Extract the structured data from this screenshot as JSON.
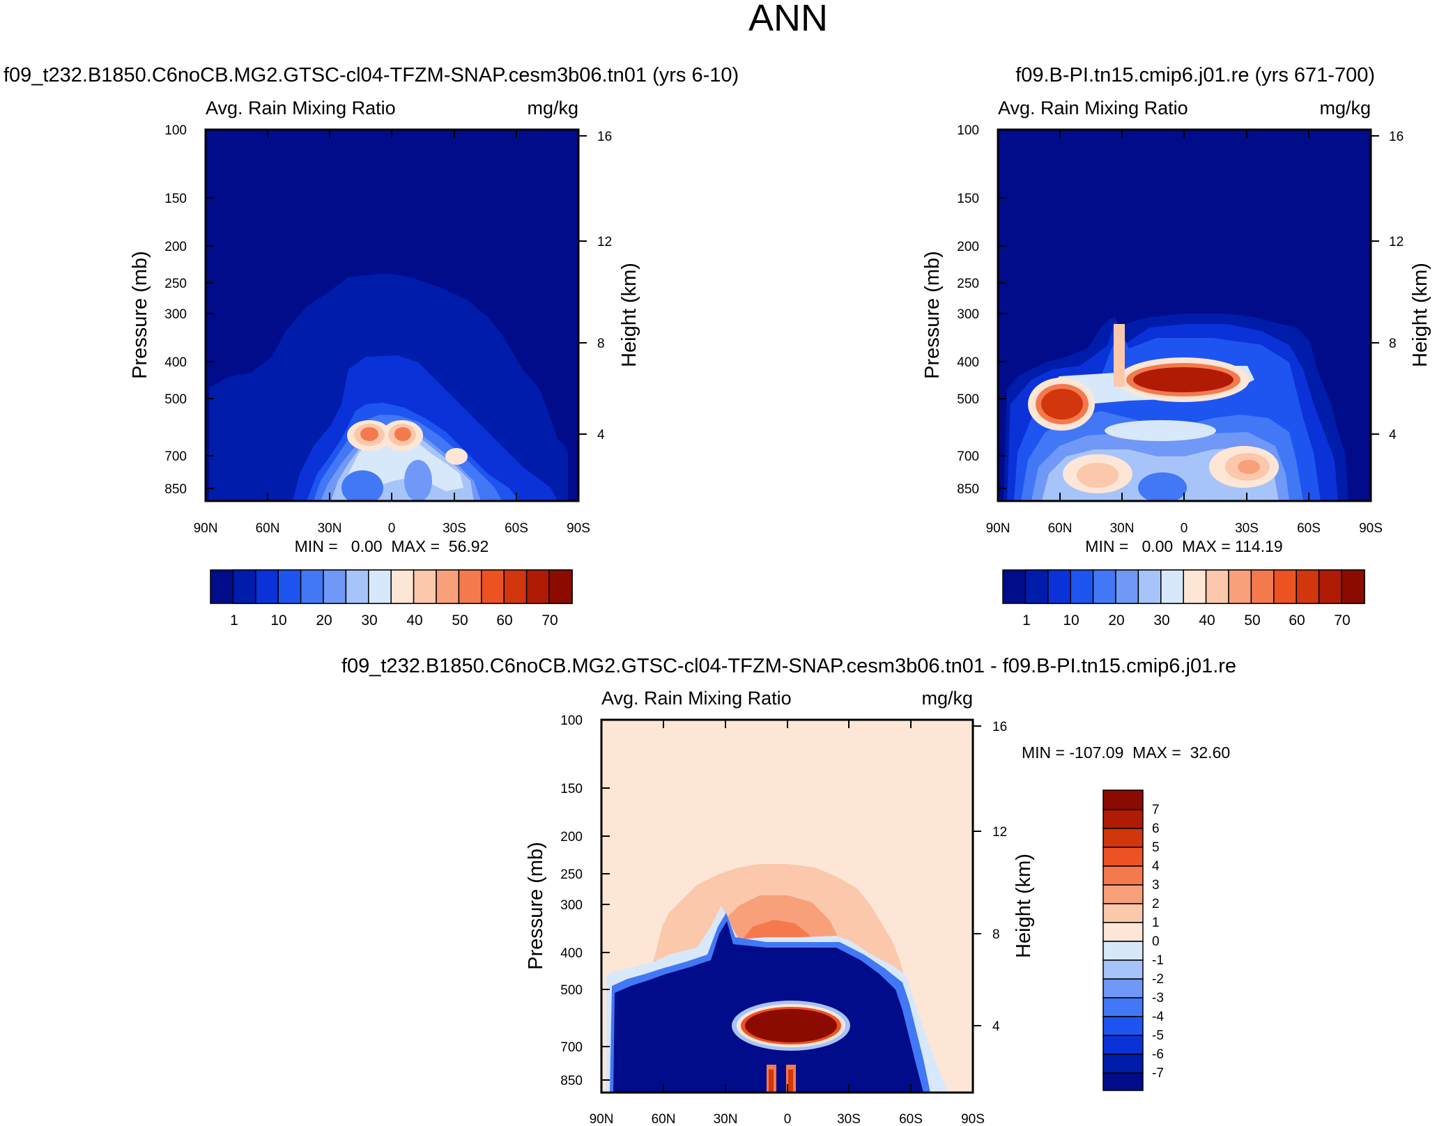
{
  "page_title": "ANN",
  "chart_data": [
    {
      "type": "contour",
      "title": "f09_t232.B1850.C6noCB.MG2.GTSC-cl04-TFZM-SNAP.cesm3b06.tn01 (yrs 6-10)",
      "variable": "Avg. Rain Mixing Ratio",
      "units": "mg/kg",
      "xlabel": "Latitude",
      "x_ticks": [
        "90N",
        "60N",
        "30N",
        "0",
        "30S",
        "60S",
        "90S"
      ],
      "ylabel": "Pressure (mb)",
      "y_ticks": [
        100,
        150,
        200,
        250,
        300,
        400,
        500,
        700,
        850
      ],
      "ylim": [
        100,
        1000
      ],
      "y2label": "Height (km)",
      "y2_ticks": [
        16,
        12,
        8,
        4
      ],
      "min_text": "MIN =   0.00  MAX =  56.92",
      "stats": {
        "min": 0.0,
        "max": 56.92
      },
      "colorbar_levels": [
        1,
        10,
        20,
        30,
        40,
        50,
        60,
        70
      ],
      "colorbar_colors": [
        "#000c8a",
        "#001cab",
        "#0a32d8",
        "#1e55f0",
        "#4278f5",
        "#7098f7",
        "#a7c4fa",
        "#d8e8fb",
        "#fde6d5",
        "#fbc8ac",
        "#f8a07a",
        "#f47a4e",
        "#ed5222",
        "#d2360c",
        "#b01b05",
        "#8b0b00"
      ],
      "features": [
        {
          "name": "outer-envelope",
          "level": 1,
          "description": "covers ~75N-85S below ~240 mb"
        },
        {
          "name": "mid-envelope",
          "level": 10,
          "description": "~45N-50S below ~390 mb"
        },
        {
          "name": "core",
          "level": 50,
          "description": "two maxima near 10N and 5S at ~600 mb"
        }
      ]
    },
    {
      "type": "contour",
      "title": "f09.B-PI.tn15.cmip6.j01.re (yrs 671-700)",
      "variable": "Avg. Rain Mixing Ratio",
      "units": "mg/kg",
      "xlabel": "Latitude",
      "x_ticks": [
        "90N",
        "60N",
        "30N",
        "0",
        "30S",
        "60S",
        "90S"
      ],
      "ylabel": "Pressure (mb)",
      "y_ticks": [
        100,
        150,
        200,
        250,
        300,
        400,
        500,
        700,
        850
      ],
      "ylim": [
        100,
        1000
      ],
      "y2label": "Height (km)",
      "y2_ticks": [
        16,
        12,
        8,
        4
      ],
      "min_text": "MIN =   0.00  MAX = 114.19",
      "stats": {
        "min": 0.0,
        "max": 114.19
      },
      "colorbar_levels": [
        1,
        10,
        20,
        30,
        40,
        50,
        60,
        70
      ],
      "colorbar_colors": [
        "#000c8a",
        "#001cab",
        "#0a32d8",
        "#1e55f0",
        "#4278f5",
        "#7098f7",
        "#a7c4fa",
        "#d8e8fb",
        "#fde6d5",
        "#fbc8ac",
        "#f8a07a",
        "#f47a4e",
        "#ed5222",
        "#d2360c",
        "#b01b05",
        "#8b0b00"
      ],
      "features": [
        {
          "name": "core-equatorial",
          "level": 70,
          "description": "max near 10N-15S at ~430 mb"
        },
        {
          "name": "core-nh-midlat",
          "level": 60,
          "description": "max near 50N at ~500 mb"
        }
      ]
    },
    {
      "type": "contour",
      "title": "f09_t232.B1850.C6noCB.MG2.GTSC-cl04-TFZM-SNAP.cesm3b06.tn01 - f09.B-PI.tn15.cmip6.j01.re",
      "variable": "Avg. Rain Mixing Ratio",
      "units": "mg/kg",
      "xlabel": "Latitude",
      "x_ticks": [
        "90N",
        "60N",
        "30N",
        "0",
        "30S",
        "60S",
        "90S"
      ],
      "ylabel": "Pressure (mb)",
      "y_ticks": [
        100,
        150,
        200,
        250,
        300,
        400,
        500,
        700,
        850
      ],
      "ylim": [
        100,
        1000
      ],
      "y2label": "Height (km)",
      "y2_ticks": [
        16,
        12,
        8,
        4
      ],
      "min_text": "MIN = -107.09  MAX =  32.60",
      "stats": {
        "min": -107.09,
        "max": 32.6
      },
      "colorbar_levels": [
        7,
        6,
        5,
        4,
        3,
        2,
        1,
        0,
        -1,
        -2,
        -3,
        -4,
        -5,
        -6,
        -7
      ],
      "colorbar_colors": [
        "#8b0b00",
        "#b01b05",
        "#d2360c",
        "#ed5222",
        "#f47a4e",
        "#f8a07a",
        "#fbc8ac",
        "#fde6d5",
        "#d8e8fb",
        "#a7c4fa",
        "#7098f7",
        "#4278f5",
        "#1e55f0",
        "#0a32d8",
        "#001cab",
        "#000c8a"
      ],
      "features": [
        {
          "name": "negative-region",
          "level": -7,
          "description": "~70N-75S, 380-1000 mb"
        },
        {
          "name": "positive-core",
          "level": 7,
          "description": "~20N-20S near 600 mb"
        }
      ]
    }
  ]
}
